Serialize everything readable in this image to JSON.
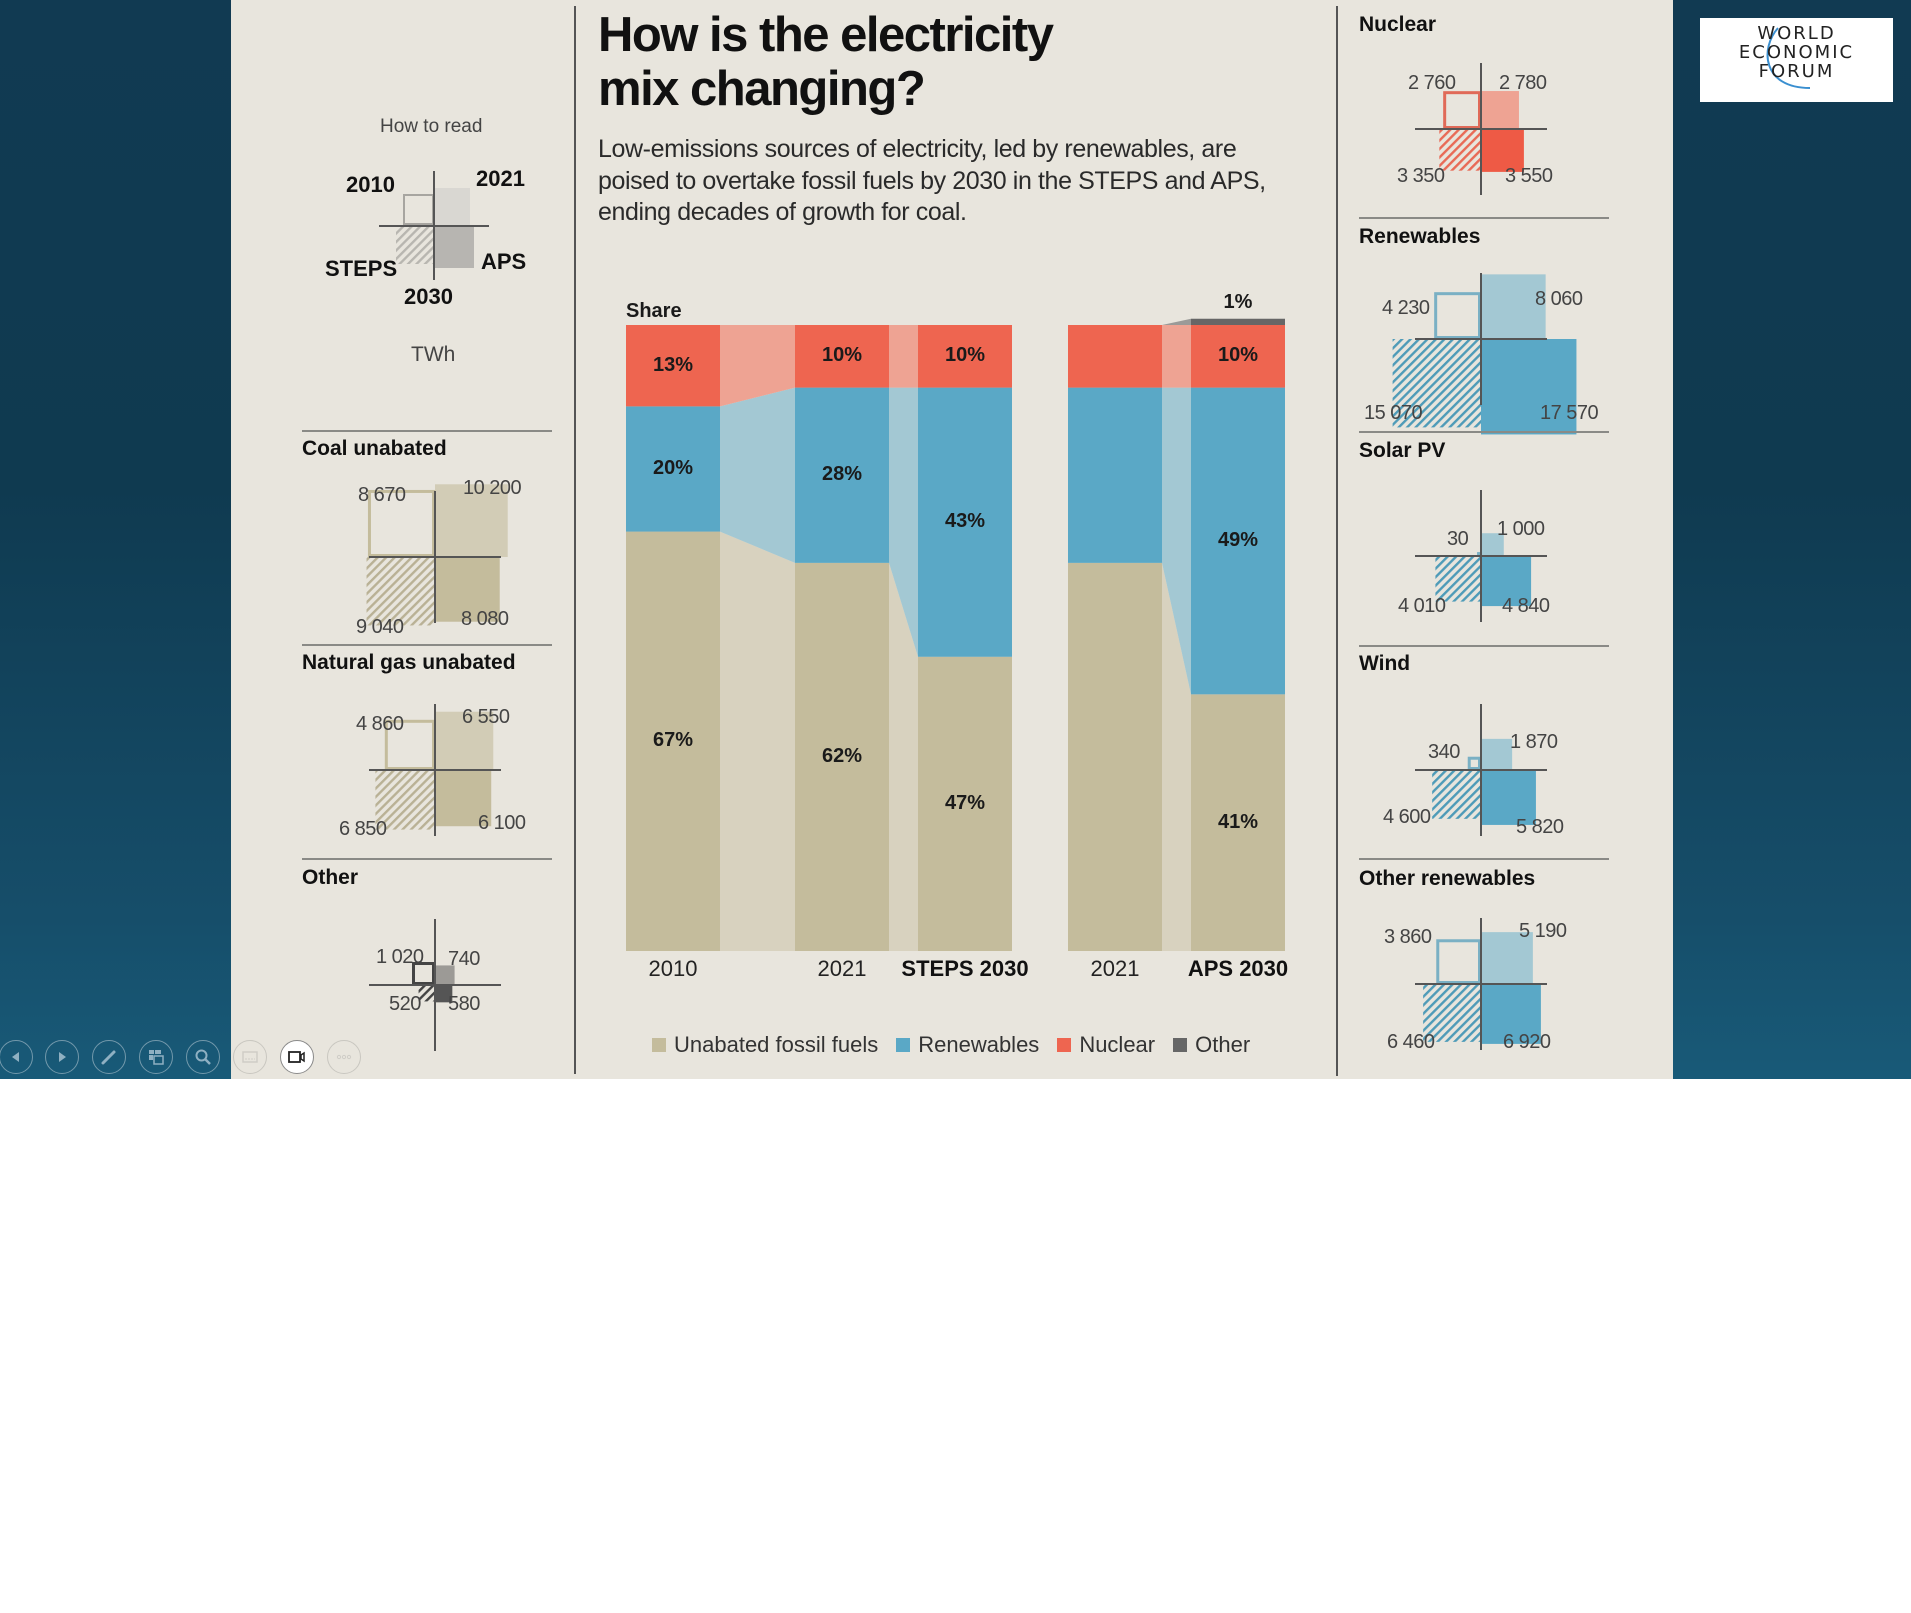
{
  "slide": {
    "title_line1": "How is the electricity",
    "title_line2": "mix changing?",
    "subtitle": "Low-emissions sources of electricity, led by renewables, are poised to overtake fossil fuels by 2030 in the STEPS and APS, ending decades of growth for coal.",
    "logo": {
      "line1": "WORLD",
      "line2": "ECONOMIC",
      "line3": "FORUM"
    }
  },
  "how_to_read": {
    "label": "How to read",
    "top_left": "2010",
    "top_right": "2021",
    "bottom_left": "STEPS",
    "bottom_right": "APS",
    "bottom_center": "2030",
    "unit": "TWh"
  },
  "colors": {
    "fossil": "#c4bc9c",
    "fossil_flow": "#d8d2bf",
    "renewables": "#5aa8c6",
    "renewables_flow": "#a3c8d3",
    "nuclear": "#ee6550",
    "nuclear_flow": "#eea393",
    "other": "#666666",
    "panel_bg": "#e8e5dd"
  },
  "quadrants_left": [
    {
      "name": "Coal unabated",
      "y2010": "8 670",
      "y2021": "10 200",
      "steps2030": "9 040",
      "aps2030": "8 080",
      "v": [
        8670,
        10200,
        9040,
        8080
      ],
      "color": "#c4bc9c",
      "light": "#d2ccb6",
      "outline": "#c4bc9c",
      "hatch": "#b9b195"
    },
    {
      "name": "Natural gas unabated",
      "y2010": "4 860",
      "y2021": "6 550",
      "steps2030": "6 850",
      "aps2030": "6 100",
      "v": [
        4860,
        6550,
        6850,
        6100
      ],
      "color": "#c4bc9c",
      "light": "#d2ccb6",
      "outline": "#c4bc9c",
      "hatch": "#b9b195"
    },
    {
      "name": "Other",
      "y2010": "1 020",
      "y2021": "740",
      "steps2030": "520",
      "aps2030": "580",
      "v": [
        1020,
        740,
        520,
        580
      ],
      "color": "#555555",
      "light": "#9c9a96",
      "outline": "#444444",
      "hatch": "#444444"
    }
  ],
  "quadrants_right": [
    {
      "name": "Nuclear",
      "y2010": "2 760",
      "y2021": "2 780",
      "steps2030": "3 350",
      "aps2030": "3 550",
      "v": [
        2760,
        2780,
        3350,
        3550
      ],
      "color": "#ee5a45",
      "light": "#eea393",
      "outline": "#e06a58",
      "hatch": "#e86a56"
    },
    {
      "name": "Renewables",
      "y2010": "4 230",
      "y2021": "8 060",
      "steps2030": "15 070",
      "aps2030": "17 570",
      "v": [
        4230,
        8060,
        15070,
        17570
      ],
      "color": "#5aa8c6",
      "light": "#a3c8d3",
      "outline": "#7ab0c4",
      "hatch": "#4e9bb8"
    },
    {
      "name": "Solar PV",
      "y2010": "30",
      "y2021": "1 000",
      "steps2030": "4 010",
      "aps2030": "4 840",
      "v": [
        30,
        1000,
        4010,
        4840
      ],
      "color": "#5aa8c6",
      "light": "#a3c8d3",
      "outline": "#7ab0c4",
      "hatch": "#4e9bb8"
    },
    {
      "name": "Wind",
      "y2010": "340",
      "y2021": "1 870",
      "steps2030": "4 600",
      "aps2030": "5 820",
      "v": [
        340,
        1870,
        4600,
        5820
      ],
      "color": "#5aa8c6",
      "light": "#a3c8d3",
      "outline": "#7ab0c4",
      "hatch": "#4e9bb8"
    },
    {
      "name": "Other renewables",
      "y2010": "3 860",
      "y2021": "5 190",
      "steps2030": "6 460",
      "aps2030": "6 920",
      "v": [
        3860,
        5190,
        6460,
        6920
      ],
      "color": "#5aa8c6",
      "light": "#a3c8d3",
      "outline": "#7ab0c4",
      "hatch": "#4e9bb8"
    }
  ],
  "chart_data": {
    "type": "bar",
    "stacked": true,
    "title": "Share",
    "categories": [
      "2010",
      "2021",
      "STEPS 2030",
      "2021",
      "APS 2030"
    ],
    "category_bold": [
      false,
      false,
      true,
      false,
      true
    ],
    "series": [
      {
        "name": "Unabated fossil fuels",
        "values": [
          67,
          62,
          47,
          62,
          41
        ],
        "labels": [
          "67%",
          "62%",
          "47%",
          "",
          "41%"
        ]
      },
      {
        "name": "Renewables",
        "values": [
          20,
          28,
          43,
          28,
          49
        ],
        "labels": [
          "20%",
          "28%",
          "43%",
          "",
          "49%"
        ]
      },
      {
        "name": "Nuclear",
        "values": [
          13,
          10,
          10,
          10,
          10
        ],
        "labels": [
          "13%",
          "10%",
          "10%",
          "",
          "10%"
        ]
      },
      {
        "name": "Other",
        "values": [
          0,
          0,
          0,
          0,
          1
        ],
        "labels": [
          "",
          "",
          "",
          "",
          "1%"
        ]
      }
    ],
    "ylim": [
      0,
      100
    ],
    "legend": [
      "Unabated fossil fuels",
      "Renewables",
      "Nuclear",
      "Other"
    ],
    "legend_position": "bottom"
  },
  "toolbar": {
    "buttons": [
      {
        "name": "previous-slide-button",
        "icon": "chevron-left-icon"
      },
      {
        "name": "next-slide-button",
        "icon": "chevron-right-icon"
      },
      {
        "name": "pen-tool-button",
        "icon": "pen-icon"
      },
      {
        "name": "see-all-slides-button",
        "icon": "slides-grid-icon"
      },
      {
        "name": "zoom-button",
        "icon": "magnifier-icon"
      },
      {
        "name": "subtitles-button",
        "icon": "subtitles-icon"
      },
      {
        "name": "camera-button",
        "icon": "video-camera-icon"
      },
      {
        "name": "more-options-button",
        "icon": "ellipsis-icon"
      }
    ]
  }
}
